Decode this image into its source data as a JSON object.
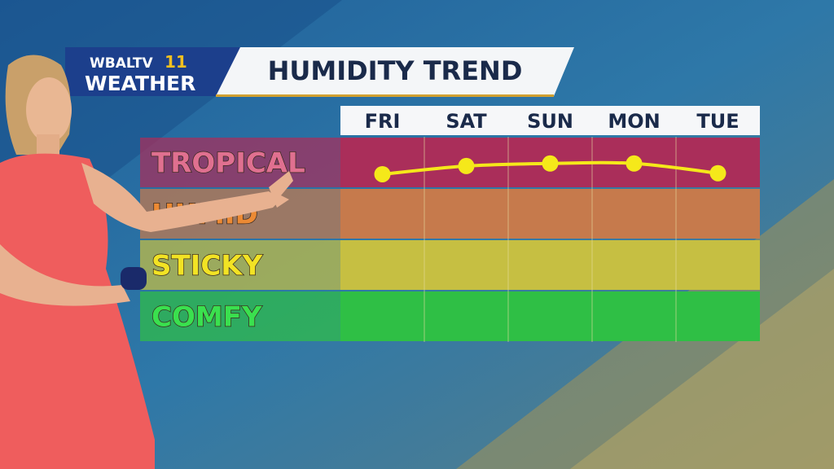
{
  "logo": {
    "station": "WBALTV",
    "channel": "11",
    "brand": "WEATHER"
  },
  "chart_data": {
    "type": "line",
    "title": "HUMIDITY TREND",
    "categories": [
      "FRI",
      "SAT",
      "SUN",
      "MON",
      "TUE"
    ],
    "bands": [
      {
        "label": "COMFY",
        "color": "#2fbf45",
        "text_color": "#3ae04e"
      },
      {
        "label": "STICKY",
        "color": "#c6bf42",
        "text_color": "#f2e324"
      },
      {
        "label": "HUMID",
        "color": "#c67a4c",
        "text_color": "#ec8a34"
      },
      {
        "label": "TROPICAL",
        "color": "#aa2e5a",
        "text_color": "#e07090"
      }
    ],
    "ylim": [
      0,
      4
    ],
    "series": [
      {
        "name": "Humidity",
        "color": "#f5e81a",
        "values": [
          3.27,
          3.43,
          3.48,
          3.48,
          3.29
        ]
      }
    ]
  }
}
